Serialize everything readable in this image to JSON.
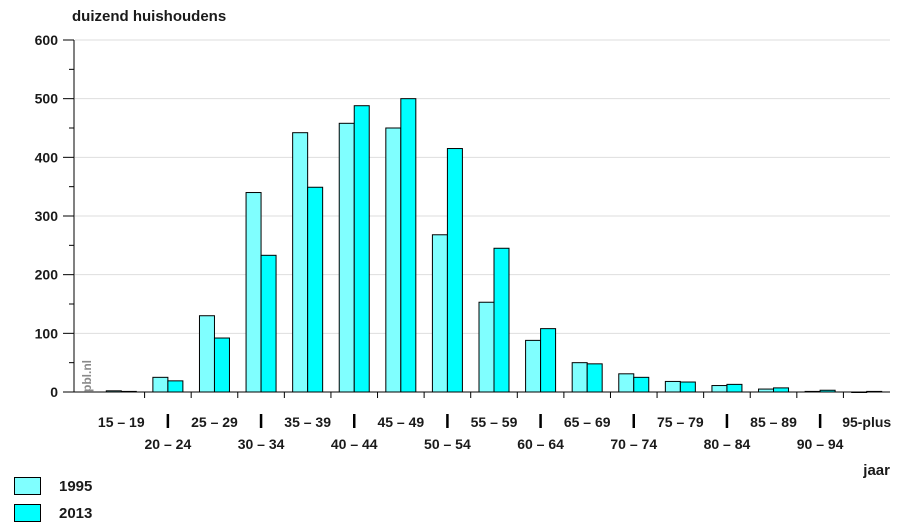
{
  "chart_data": {
    "type": "bar",
    "ylabel": "duizend huishoudens",
    "xlabel": "jaar",
    "ylim": [
      0,
      600
    ],
    "yticks": [
      0,
      100,
      200,
      300,
      400,
      500,
      600
    ],
    "grid": true,
    "legend_position": "bottom-left",
    "watermark": "pbl.nl",
    "categories": [
      "15 – 19",
      "20 – 24",
      "25 – 29",
      "30 – 34",
      "35 – 39",
      "40 – 44",
      "45 – 49",
      "50 – 54",
      "55 – 59",
      "60 – 64",
      "65 – 69",
      "70 – 74",
      "75 – 79",
      "80 – 84",
      "85 – 89",
      "90 – 94",
      "95-plus"
    ],
    "series": [
      {
        "name": "1995",
        "color": "#80ffff",
        "values": [
          2,
          25,
          130,
          340,
          442,
          458,
          450,
          268,
          153,
          88,
          50,
          31,
          18,
          11,
          5,
          1,
          0
        ]
      },
      {
        "name": "2013",
        "color": "#00ffff",
        "values": [
          1,
          19,
          92,
          233,
          349,
          488,
          500,
          415,
          245,
          108,
          48,
          25,
          17,
          13,
          7,
          3,
          1
        ]
      }
    ]
  }
}
